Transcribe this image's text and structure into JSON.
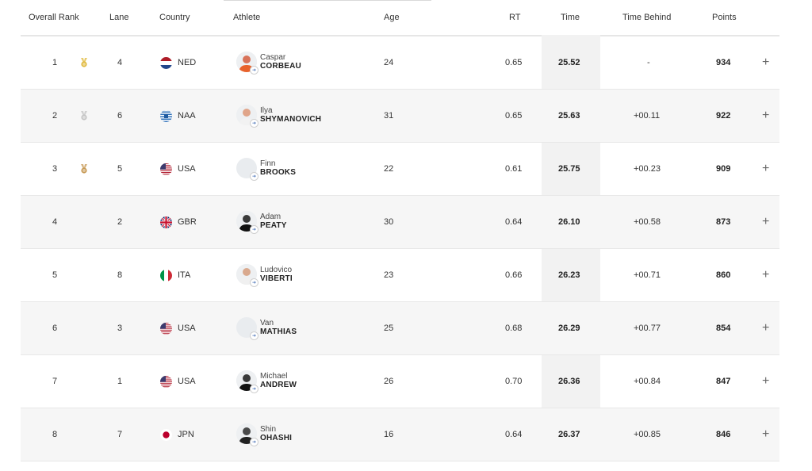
{
  "columns": {
    "overall_rank": "Overall Rank",
    "lane": "Lane",
    "country": "Country",
    "athlete": "Athlete",
    "age": "Age",
    "rt": "RT",
    "time": "Time",
    "time_behind": "Time Behind",
    "points": "Points"
  },
  "expand_symbol": "+",
  "medal_colors": {
    "gold": "#e0b93c",
    "silver": "#c4c4c4",
    "bronze": "#c79a55"
  },
  "rows": [
    {
      "rank": "1",
      "medal": "gold",
      "lane": "4",
      "country": "NED",
      "flag": "flag-ned-icon",
      "first": "Caspar",
      "last": "CORBEAU",
      "age": "24",
      "rt": "0.65",
      "time": "25.52",
      "behind": "-",
      "points": "934"
    },
    {
      "rank": "2",
      "medal": "silver",
      "lane": "6",
      "country": "NAA",
      "flag": "flag-naa-icon",
      "first": "Ilya",
      "last": "SHYMANOVICH",
      "age": "31",
      "rt": "0.65",
      "time": "25.63",
      "behind": "+00.11",
      "points": "922"
    },
    {
      "rank": "3",
      "medal": "bronze",
      "lane": "5",
      "country": "USA",
      "flag": "flag-usa-icon",
      "first": "Finn",
      "last": "BROOKS",
      "age": "22",
      "rt": "0.61",
      "time": "25.75",
      "behind": "+00.23",
      "points": "909"
    },
    {
      "rank": "4",
      "medal": "",
      "lane": "2",
      "country": "GBR",
      "flag": "flag-gbr-icon",
      "first": "Adam",
      "last": "PEATY",
      "age": "30",
      "rt": "0.64",
      "time": "26.10",
      "behind": "+00.58",
      "points": "873"
    },
    {
      "rank": "5",
      "medal": "",
      "lane": "8",
      "country": "ITA",
      "flag": "flag-ita-icon",
      "first": "Ludovico",
      "last": "VIBERTI",
      "age": "23",
      "rt": "0.66",
      "time": "26.23",
      "behind": "+00.71",
      "points": "860"
    },
    {
      "rank": "6",
      "medal": "",
      "lane": "3",
      "country": "USA",
      "flag": "flag-usa-icon",
      "first": "Van",
      "last": "MATHIAS",
      "age": "25",
      "rt": "0.68",
      "time": "26.29",
      "behind": "+00.77",
      "points": "854"
    },
    {
      "rank": "7",
      "medal": "",
      "lane": "1",
      "country": "USA",
      "flag": "flag-usa-icon",
      "first": "Michael",
      "last": "ANDREW",
      "age": "26",
      "rt": "0.70",
      "time": "26.36",
      "behind": "+00.84",
      "points": "847"
    },
    {
      "rank": "8",
      "medal": "",
      "lane": "7",
      "country": "JPN",
      "flag": "flag-jpn-icon",
      "first": "Shin",
      "last": "OHASHI",
      "age": "16",
      "rt": "0.64",
      "time": "26.37",
      "behind": "+00.85",
      "points": "846"
    }
  ]
}
